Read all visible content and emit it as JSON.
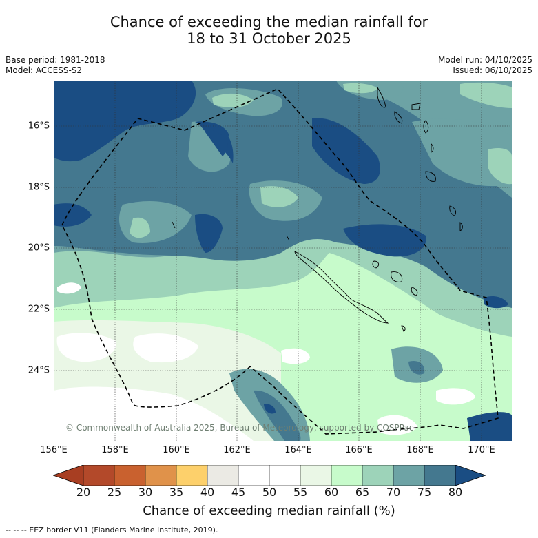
{
  "title": {
    "line1": "Chance of exceeding the median rainfall for",
    "line2": "18 to 31 October 2025"
  },
  "meta_left": {
    "base_period": "Base period: 1981-2018",
    "model": "Model: ACCESS-S2"
  },
  "meta_right": {
    "model_run": "Model run: 04/10/2025",
    "issued": "Issued: 06/10/2025"
  },
  "map": {
    "longitude_labels": [
      "156°E",
      "158°E",
      "160°E",
      "162°E",
      "164°E",
      "166°E",
      "168°E",
      "170°E"
    ],
    "latitude_labels": [
      "16°S",
      "18°S",
      "20°S",
      "22°S",
      "24°S"
    ],
    "copyright": "© Commonwealth of Australia 2025, Bureau of Meteorology, supported by COSPPac"
  },
  "colorbar": {
    "ticks": [
      "20",
      "25",
      "30",
      "35",
      "40",
      "45",
      "50",
      "55",
      "60",
      "65",
      "70",
      "75",
      "80"
    ],
    "colors": [
      "#a83e22",
      "#b3492a",
      "#c9612f",
      "#e0924a",
      "#fdd06b",
      "#ebeae4",
      "#ffffff",
      "#ffffff",
      "#eaf7e6",
      "#c7fbcb",
      "#9dd3b9",
      "#6da3a5",
      "#44788f",
      "#1a4d83"
    ],
    "label": "Chance of exceeding median rainfall (%)"
  },
  "footer": "--  --  -- EEZ border V11 (Flanders Marine Institute, 2019)."
}
